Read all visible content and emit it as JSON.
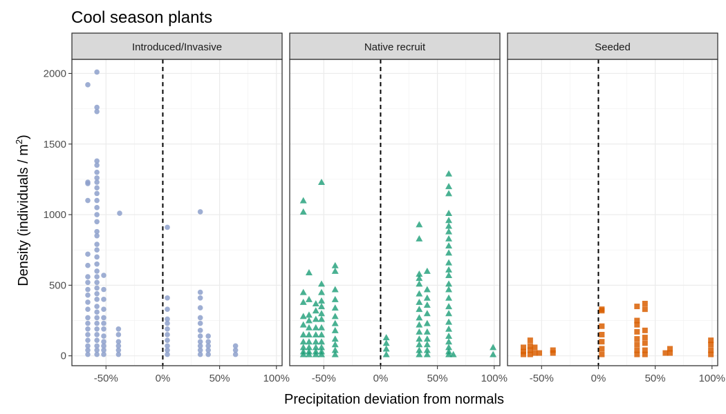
{
  "chart_data": {
    "type": "scatter",
    "title": "Cool season plants",
    "xlabel": "Precipitation deviation from normals",
    "ylabel_main": "Density (individuals / m",
    "ylabel_sup": "2",
    "ylabel_close": ")",
    "xlim": [
      -80,
      105
    ],
    "ylim": [
      -70,
      2100
    ],
    "xticks": [
      -50,
      0,
      50,
      100
    ],
    "xtick_labels": [
      "-50%",
      "0%",
      "50%",
      "100%"
    ],
    "yticks": [
      0,
      500,
      1000,
      1500,
      2000
    ],
    "ytick_labels": [
      "0",
      "500",
      "1000",
      "1500",
      "2000"
    ],
    "grid": true,
    "reference_line": {
      "x": 0,
      "style": "dashed"
    },
    "panels": [
      {
        "label": "Introduced/Invasive",
        "color": "#8da0cb",
        "marker": "circle",
        "points": [
          [
            -66,
            10
          ],
          [
            -66,
            40
          ],
          [
            -66,
            70
          ],
          [
            -66,
            110
          ],
          [
            -66,
            150
          ],
          [
            -66,
            190
          ],
          [
            -66,
            230
          ],
          [
            -66,
            270
          ],
          [
            -66,
            330
          ],
          [
            -66,
            380
          ],
          [
            -66,
            430
          ],
          [
            -66,
            470
          ],
          [
            -66,
            520
          ],
          [
            -66,
            560
          ],
          [
            -66,
            640
          ],
          [
            -66,
            720
          ],
          [
            -66,
            1100
          ],
          [
            -66,
            1220
          ],
          [
            -66,
            1230
          ],
          [
            -66,
            1920
          ],
          [
            -58,
            10
          ],
          [
            -58,
            40
          ],
          [
            -58,
            70
          ],
          [
            -58,
            110
          ],
          [
            -58,
            150
          ],
          [
            -58,
            190
          ],
          [
            -58,
            230
          ],
          [
            -58,
            270
          ],
          [
            -58,
            310
          ],
          [
            -58,
            350
          ],
          [
            -58,
            400
          ],
          [
            -58,
            440
          ],
          [
            -58,
            480
          ],
          [
            -58,
            520
          ],
          [
            -58,
            560
          ],
          [
            -58,
            600
          ],
          [
            -58,
            650
          ],
          [
            -58,
            700
          ],
          [
            -58,
            750
          ],
          [
            -58,
            790
          ],
          [
            -58,
            850
          ],
          [
            -58,
            880
          ],
          [
            -58,
            950
          ],
          [
            -58,
            1000
          ],
          [
            -58,
            1050
          ],
          [
            -58,
            1100
          ],
          [
            -58,
            1150
          ],
          [
            -58,
            1190
          ],
          [
            -58,
            1230
          ],
          [
            -58,
            1260
          ],
          [
            -58,
            1300
          ],
          [
            -58,
            1350
          ],
          [
            -58,
            1380
          ],
          [
            -58,
            1730
          ],
          [
            -58,
            1760
          ],
          [
            -58,
            2010
          ],
          [
            -52,
            10
          ],
          [
            -52,
            40
          ],
          [
            -52,
            70
          ],
          [
            -52,
            100
          ],
          [
            -52,
            140
          ],
          [
            -52,
            190
          ],
          [
            -52,
            230
          ],
          [
            -52,
            270
          ],
          [
            -52,
            330
          ],
          [
            -52,
            400
          ],
          [
            -52,
            470
          ],
          [
            -52,
            570
          ],
          [
            -39,
            10
          ],
          [
            -39,
            40
          ],
          [
            -39,
            70
          ],
          [
            -39,
            100
          ],
          [
            -39,
            150
          ],
          [
            -39,
            190
          ],
          [
            -38,
            1010
          ],
          [
            4,
            10
          ],
          [
            4,
            40
          ],
          [
            4,
            70
          ],
          [
            4,
            110
          ],
          [
            4,
            150
          ],
          [
            4,
            190
          ],
          [
            4,
            230
          ],
          [
            4,
            260
          ],
          [
            4,
            330
          ],
          [
            4,
            410
          ],
          [
            4,
            910
          ],
          [
            33,
            10
          ],
          [
            33,
            40
          ],
          [
            33,
            70
          ],
          [
            33,
            100
          ],
          [
            33,
            140
          ],
          [
            33,
            180
          ],
          [
            33,
            230
          ],
          [
            33,
            270
          ],
          [
            33,
            340
          ],
          [
            33,
            410
          ],
          [
            33,
            450
          ],
          [
            33,
            1020
          ],
          [
            40,
            10
          ],
          [
            40,
            40
          ],
          [
            40,
            70
          ],
          [
            40,
            100
          ],
          [
            40,
            140
          ],
          [
            64,
            10
          ],
          [
            64,
            40
          ],
          [
            64,
            70
          ]
        ]
      },
      {
        "label": "Native recruit",
        "color": "#1b9e77",
        "marker": "triangle",
        "points": [
          [
            -68,
            10
          ],
          [
            -68,
            30
          ],
          [
            -68,
            60
          ],
          [
            -68,
            100
          ],
          [
            -68,
            150
          ],
          [
            -68,
            220
          ],
          [
            -68,
            280
          ],
          [
            -68,
            380
          ],
          [
            -68,
            450
          ],
          [
            -68,
            1020
          ],
          [
            -68,
            1100
          ],
          [
            -63,
            10
          ],
          [
            -63,
            30
          ],
          [
            -63,
            60
          ],
          [
            -63,
            100
          ],
          [
            -63,
            150
          ],
          [
            -63,
            200
          ],
          [
            -63,
            250
          ],
          [
            -63,
            290
          ],
          [
            -63,
            400
          ],
          [
            -63,
            590
          ],
          [
            -57,
            10
          ],
          [
            -57,
            30
          ],
          [
            -57,
            60
          ],
          [
            -57,
            100
          ],
          [
            -57,
            150
          ],
          [
            -57,
            200
          ],
          [
            -57,
            260
          ],
          [
            -57,
            320
          ],
          [
            -57,
            370
          ],
          [
            -52,
            10
          ],
          [
            -52,
            30
          ],
          [
            -52,
            60
          ],
          [
            -52,
            100
          ],
          [
            -52,
            150
          ],
          [
            -52,
            200
          ],
          [
            -52,
            260
          ],
          [
            -52,
            300
          ],
          [
            -52,
            350
          ],
          [
            -52,
            390
          ],
          [
            -52,
            450
          ],
          [
            -52,
            510
          ],
          [
            -52,
            1230
          ],
          [
            -40,
            10
          ],
          [
            -40,
            40
          ],
          [
            -40,
            80
          ],
          [
            -40,
            120
          ],
          [
            -40,
            180
          ],
          [
            -40,
            230
          ],
          [
            -40,
            280
          ],
          [
            -40,
            340
          ],
          [
            -40,
            400
          ],
          [
            -40,
            470
          ],
          [
            -40,
            600
          ],
          [
            -40,
            640
          ],
          [
            5,
            10
          ],
          [
            5,
            50
          ],
          [
            5,
            90
          ],
          [
            5,
            130
          ],
          [
            34,
            10
          ],
          [
            34,
            40
          ],
          [
            34,
            80
          ],
          [
            34,
            120
          ],
          [
            34,
            170
          ],
          [
            34,
            220
          ],
          [
            34,
            270
          ],
          [
            34,
            330
          ],
          [
            34,
            380
          ],
          [
            34,
            440
          ],
          [
            34,
            510
          ],
          [
            34,
            550
          ],
          [
            34,
            580
          ],
          [
            34,
            830
          ],
          [
            34,
            930
          ],
          [
            41,
            10
          ],
          [
            41,
            40
          ],
          [
            41,
            80
          ],
          [
            41,
            120
          ],
          [
            41,
            170
          ],
          [
            41,
            230
          ],
          [
            41,
            300
          ],
          [
            41,
            360
          ],
          [
            41,
            410
          ],
          [
            41,
            470
          ],
          [
            41,
            600
          ],
          [
            60,
            10
          ],
          [
            60,
            30
          ],
          [
            60,
            60
          ],
          [
            60,
            100
          ],
          [
            60,
            140
          ],
          [
            60,
            190
          ],
          [
            60,
            240
          ],
          [
            60,
            300
          ],
          [
            60,
            350
          ],
          [
            60,
            410
          ],
          [
            60,
            470
          ],
          [
            60,
            510
          ],
          [
            60,
            570
          ],
          [
            60,
            610
          ],
          [
            60,
            660
          ],
          [
            60,
            730
          ],
          [
            60,
            780
          ],
          [
            60,
            830
          ],
          [
            60,
            880
          ],
          [
            60,
            920
          ],
          [
            60,
            960
          ],
          [
            60,
            1010
          ],
          [
            60,
            1150
          ],
          [
            60,
            1200
          ],
          [
            60,
            1290
          ],
          [
            64,
            10
          ],
          [
            99,
            10
          ],
          [
            99,
            60
          ]
        ]
      },
      {
        "label": "Seeded",
        "color": "#d95f02",
        "marker": "square",
        "points": [
          [
            -66,
            10
          ],
          [
            -66,
            30
          ],
          [
            -66,
            60
          ],
          [
            -60,
            10
          ],
          [
            -60,
            40
          ],
          [
            -60,
            70
          ],
          [
            -60,
            110
          ],
          [
            -56,
            20
          ],
          [
            -56,
            60
          ],
          [
            -52,
            20
          ],
          [
            -40,
            20
          ],
          [
            -40,
            40
          ],
          [
            3,
            10
          ],
          [
            3,
            50
          ],
          [
            3,
            100
          ],
          [
            3,
            150
          ],
          [
            3,
            210
          ],
          [
            3,
            320
          ],
          [
            3,
            330
          ],
          [
            34,
            10
          ],
          [
            34,
            40
          ],
          [
            34,
            80
          ],
          [
            34,
            120
          ],
          [
            34,
            170
          ],
          [
            34,
            220
          ],
          [
            34,
            250
          ],
          [
            34,
            350
          ],
          [
            41,
            10
          ],
          [
            41,
            40
          ],
          [
            41,
            90
          ],
          [
            41,
            130
          ],
          [
            41,
            180
          ],
          [
            41,
            330
          ],
          [
            41,
            370
          ],
          [
            59,
            20
          ],
          [
            63,
            20
          ],
          [
            63,
            50
          ],
          [
            99,
            10
          ],
          [
            99,
            40
          ],
          [
            99,
            80
          ],
          [
            99,
            110
          ]
        ]
      }
    ]
  }
}
